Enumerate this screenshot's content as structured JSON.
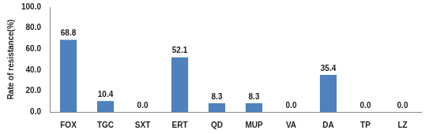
{
  "chart_data": {
    "type": "bar",
    "y_label": "Rate of resistance(%)",
    "categories": [
      "FOX",
      "TGC",
      "SXT",
      "ERT",
      "QD",
      "MUP",
      "VA",
      "DA",
      "TP",
      "LZ"
    ],
    "values": [
      68.8,
      10.4,
      0.0,
      52.1,
      8.3,
      8.3,
      0.0,
      35.4,
      0.0,
      0.0
    ],
    "value_labels": [
      "68.8",
      "10.4",
      "0.0",
      "52.1",
      "8.3",
      "8.3",
      "0.0",
      "35.4",
      "0.0",
      "0.0"
    ],
    "color": "#4f81bd",
    "ylim": [
      0,
      100
    ],
    "yticks": [
      {
        "value": 0,
        "label": "0.0"
      },
      {
        "value": 20,
        "label": "20.0"
      },
      {
        "value": 40,
        "label": "40.0"
      },
      {
        "value": 60,
        "label": "60.0"
      },
      {
        "value": 80,
        "label": "80.0"
      },
      {
        "value": 100,
        "label": "100.0"
      }
    ],
    "grid": false,
    "data_labels": true
  }
}
